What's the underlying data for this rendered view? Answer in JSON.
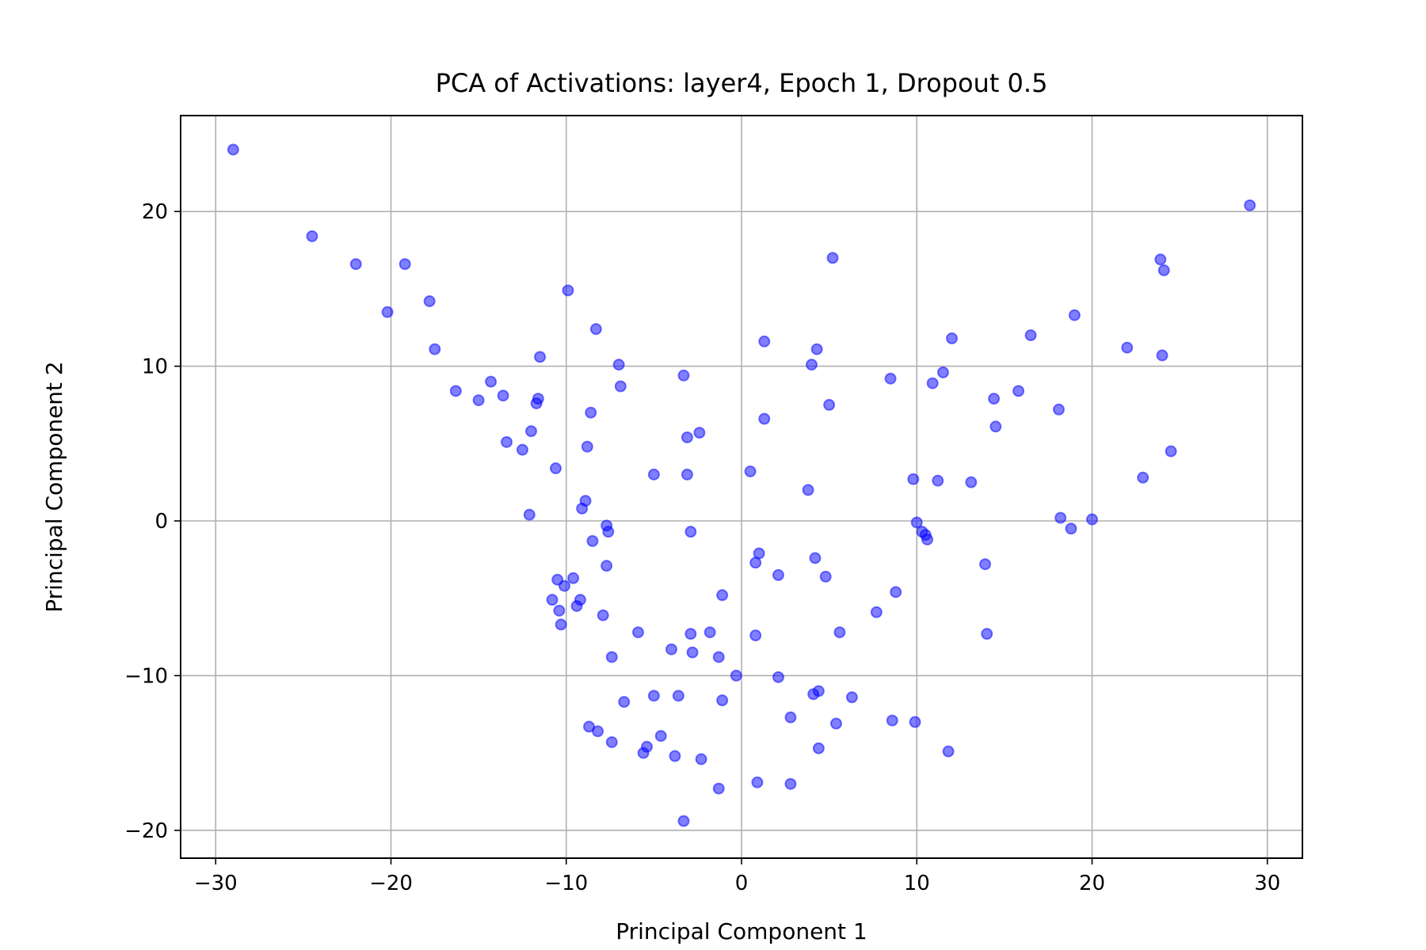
{
  "chart_data": {
    "type": "scatter",
    "title": "PCA of Activations: layer4, Epoch 1, Dropout 0.5",
    "xlabel": "Principal Component 1",
    "ylabel": "Principal Component 2",
    "xlim": [
      -32,
      32
    ],
    "ylim": [
      -21.8,
      26.2
    ],
    "xticks": [
      -30,
      -20,
      -10,
      0,
      10,
      20,
      30
    ],
    "yticks": [
      -20,
      -10,
      0,
      10,
      20
    ],
    "xtick_labels": [
      "−30",
      "−20",
      "−10",
      "0",
      "10",
      "20",
      "30"
    ],
    "ytick_labels": [
      "−20",
      "−10",
      "0",
      "10",
      "20"
    ],
    "grid": true,
    "marker_color": "#0000ff",
    "marker_alpha": 0.5,
    "points": [
      [
        -29,
        24
      ],
      [
        -24.5,
        18.4
      ],
      [
        -22,
        16.6
      ],
      [
        -20.2,
        13.5
      ],
      [
        -19.2,
        16.6
      ],
      [
        -17.8,
        14.2
      ],
      [
        -17.5,
        11.1
      ],
      [
        -16.3,
        8.4
      ],
      [
        -15,
        7.8
      ],
      [
        -14.3,
        9
      ],
      [
        -13.6,
        8.1
      ],
      [
        -13.4,
        5.1
      ],
      [
        -12.5,
        4.6
      ],
      [
        -12.1,
        0.4
      ],
      [
        -12,
        5.8
      ],
      [
        -11.7,
        7.6
      ],
      [
        -11.6,
        7.9
      ],
      [
        -11.5,
        10.6
      ],
      [
        -10.6,
        3.4
      ],
      [
        -10.8,
        -5.1
      ],
      [
        -10.5,
        -3.8
      ],
      [
        -10.4,
        -5.8
      ],
      [
        -10.3,
        -6.7
      ],
      [
        -10.1,
        -4.2
      ],
      [
        -9.9,
        14.9
      ],
      [
        -9.6,
        -3.7
      ],
      [
        -9.4,
        -5.5
      ],
      [
        -9.2,
        -5.1
      ],
      [
        -9.1,
        0.8
      ],
      [
        -8.9,
        1.3
      ],
      [
        -8.8,
        4.8
      ],
      [
        -8.6,
        7
      ],
      [
        -8.5,
        -1.3
      ],
      [
        -8.7,
        -13.3
      ],
      [
        -8.3,
        12.4
      ],
      [
        -8.2,
        -13.6
      ],
      [
        -7.9,
        -6.1
      ],
      [
        -7.7,
        -2.9
      ],
      [
        -7.7,
        -0.3
      ],
      [
        -7.6,
        -0.7
      ],
      [
        -7.4,
        -8.8
      ],
      [
        -7.4,
        -14.3
      ],
      [
        -7,
        10.1
      ],
      [
        -6.9,
        8.7
      ],
      [
        -6.7,
        -11.7
      ],
      [
        -5.9,
        -7.2
      ],
      [
        -5.6,
        -15
      ],
      [
        -5.4,
        -14.6
      ],
      [
        -5,
        3
      ],
      [
        -5,
        -11.3
      ],
      [
        -4.6,
        -13.9
      ],
      [
        -4,
        -8.3
      ],
      [
        -3.8,
        -15.2
      ],
      [
        -3.6,
        -11.3
      ],
      [
        -3.3,
        9.4
      ],
      [
        -3.3,
        -19.4
      ],
      [
        -3.1,
        5.4
      ],
      [
        -3.1,
        3
      ],
      [
        -2.9,
        -7.3
      ],
      [
        -2.9,
        -0.7
      ],
      [
        -2.8,
        -8.5
      ],
      [
        -2.4,
        5.7
      ],
      [
        -2.3,
        -15.4
      ],
      [
        -1.8,
        -7.2
      ],
      [
        -1.3,
        -8.8
      ],
      [
        -1.3,
        -17.3
      ],
      [
        -1.1,
        -4.8
      ],
      [
        -1.1,
        -11.6
      ],
      [
        -0.3,
        -10
      ],
      [
        0.5,
        3.2
      ],
      [
        0.8,
        -2.7
      ],
      [
        0.8,
        -7.4
      ],
      [
        0.9,
        -16.9
      ],
      [
        1,
        -2.1
      ],
      [
        1.3,
        11.6
      ],
      [
        1.3,
        6.6
      ],
      [
        2.1,
        -3.5
      ],
      [
        2.1,
        -10.1
      ],
      [
        2.8,
        -12.7
      ],
      [
        2.8,
        -17
      ],
      [
        3.8,
        2
      ],
      [
        4,
        10.1
      ],
      [
        4.1,
        -11.2
      ],
      [
        4.2,
        -2.4
      ],
      [
        4.3,
        11.1
      ],
      [
        4.4,
        -11
      ],
      [
        4.4,
        -14.7
      ],
      [
        4.8,
        -3.6
      ],
      [
        5,
        7.5
      ],
      [
        5.2,
        17
      ],
      [
        5.4,
        -13.1
      ],
      [
        5.6,
        -7.2
      ],
      [
        6.3,
        -11.4
      ],
      [
        7.7,
        -5.9
      ],
      [
        8.5,
        9.2
      ],
      [
        8.6,
        -12.9
      ],
      [
        8.8,
        -4.6
      ],
      [
        9.8,
        2.7
      ],
      [
        9.9,
        -13
      ],
      [
        10,
        -0.1
      ],
      [
        10.3,
        -0.7
      ],
      [
        10.5,
        -0.9
      ],
      [
        10.6,
        -1.2
      ],
      [
        10.9,
        8.9
      ],
      [
        11.2,
        2.6
      ],
      [
        11.5,
        9.6
      ],
      [
        11.8,
        -14.9
      ],
      [
        12,
        11.8
      ],
      [
        13.1,
        2.5
      ],
      [
        13.9,
        -2.8
      ],
      [
        14,
        -7.3
      ],
      [
        14.4,
        7.9
      ],
      [
        14.5,
        6.1
      ],
      [
        15.8,
        8.4
      ],
      [
        16.5,
        12
      ],
      [
        18.1,
        7.2
      ],
      [
        18.2,
        0.2
      ],
      [
        18.8,
        -0.5
      ],
      [
        19,
        13.3
      ],
      [
        20,
        0.1
      ],
      [
        22,
        11.2
      ],
      [
        22.9,
        2.8
      ],
      [
        23.9,
        16.9
      ],
      [
        24,
        10.7
      ],
      [
        24.1,
        16.2
      ],
      [
        24.5,
        4.5
      ],
      [
        29,
        20.4
      ]
    ]
  }
}
